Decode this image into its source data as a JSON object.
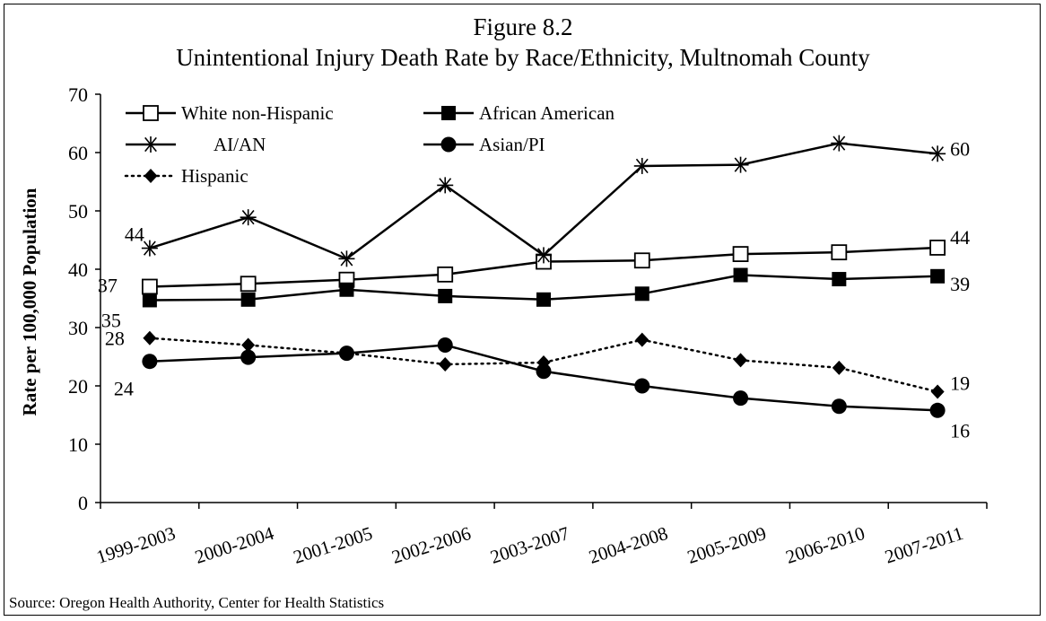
{
  "figure": {
    "title": "Figure 8.2",
    "subtitle": "Unintentional Injury Death Rate by Race/Ethnicity, Multnomah County",
    "source": "Source: Oregon Health Authority, Center for Health Statistics"
  },
  "chart_data": {
    "type": "line",
    "ylabel": "Rate per 100,000 Population",
    "xlabel": "",
    "ylim": [
      0,
      70
    ],
    "yticks": [
      0,
      10,
      20,
      30,
      40,
      50,
      60,
      70
    ],
    "grid": false,
    "legend_position": "top-left",
    "categories": [
      "1999-2003",
      "2000-2004",
      "2001-2005",
      "2002-2006",
      "2003-2007",
      "2004-2008",
      "2005-2009",
      "2006-2010",
      "2007-2011"
    ],
    "series": [
      {
        "name": "White non-Hispanic",
        "marker": "open-square",
        "line": "solid",
        "values": [
          37.0,
          37.5,
          38.2,
          39.1,
          41.3,
          41.5,
          42.6,
          42.9,
          43.7
        ],
        "labels": [
          {
            "index": 0,
            "text": "37"
          },
          {
            "index": 8,
            "text": "44"
          }
        ]
      },
      {
        "name": "African American",
        "marker": "filled-square",
        "line": "solid",
        "values": [
          34.7,
          34.8,
          36.5,
          35.4,
          34.8,
          35.8,
          39.0,
          38.3,
          38.8
        ],
        "labels": [
          {
            "index": 0,
            "text": "35"
          },
          {
            "index": 8,
            "text": "39"
          }
        ]
      },
      {
        "name": "AI/AN",
        "marker": "asterisk",
        "line": "solid",
        "values": [
          43.6,
          48.9,
          41.8,
          54.4,
          42.4,
          57.7,
          57.9,
          61.6,
          59.8
        ],
        "labels": [
          {
            "index": 0,
            "text": "44"
          },
          {
            "index": 8,
            "text": "60"
          }
        ]
      },
      {
        "name": "Asian/PI",
        "marker": "filled-circle",
        "line": "solid",
        "values": [
          24.2,
          24.9,
          25.6,
          27.0,
          22.5,
          20.0,
          17.9,
          16.5,
          15.8
        ],
        "labels": [
          {
            "index": 0,
            "text": "24"
          },
          {
            "index": 8,
            "text": "16"
          }
        ]
      },
      {
        "name": "Hispanic",
        "marker": "filled-diamond",
        "line": "dotted",
        "values": [
          28.2,
          27.0,
          25.6,
          23.7,
          24.0,
          27.9,
          24.4,
          23.1,
          19.0
        ],
        "labels": [
          {
            "index": 0,
            "text": "28"
          },
          {
            "index": 8,
            "text": "19"
          }
        ]
      }
    ]
  }
}
